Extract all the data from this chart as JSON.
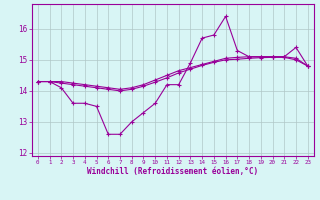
{
  "xlabel": "Windchill (Refroidissement éolien,°C)",
  "hours": [
    0,
    1,
    2,
    3,
    4,
    5,
    6,
    7,
    8,
    9,
    10,
    11,
    12,
    13,
    14,
    15,
    16,
    17,
    18,
    19,
    20,
    21,
    22,
    23
  ],
  "line1": [
    14.3,
    14.3,
    14.1,
    13.6,
    13.6,
    13.5,
    12.6,
    12.6,
    13.0,
    13.3,
    13.6,
    14.2,
    14.2,
    14.9,
    15.7,
    15.8,
    16.4,
    15.3,
    15.1,
    15.1,
    15.1,
    15.1,
    15.4,
    14.8
  ],
  "line2": [
    14.3,
    14.3,
    14.3,
    14.25,
    14.2,
    14.15,
    14.1,
    14.05,
    14.1,
    14.2,
    14.35,
    14.5,
    14.65,
    14.75,
    14.85,
    14.95,
    15.05,
    15.08,
    15.1,
    15.1,
    15.1,
    15.1,
    15.05,
    14.8
  ],
  "line3": [
    14.3,
    14.3,
    14.25,
    14.2,
    14.15,
    14.1,
    14.05,
    14.0,
    14.05,
    14.15,
    14.28,
    14.42,
    14.58,
    14.7,
    14.82,
    14.92,
    15.0,
    15.02,
    15.05,
    15.07,
    15.08,
    15.08,
    15.0,
    14.8
  ],
  "color": "#990099",
  "bg_color": "#d8f5f5",
  "grid_color": "#b0c8c8",
  "ylim": [
    11.9,
    16.8
  ],
  "yticks": [
    12,
    13,
    14,
    15,
    16
  ],
  "xlim": [
    -0.5,
    23.5
  ]
}
